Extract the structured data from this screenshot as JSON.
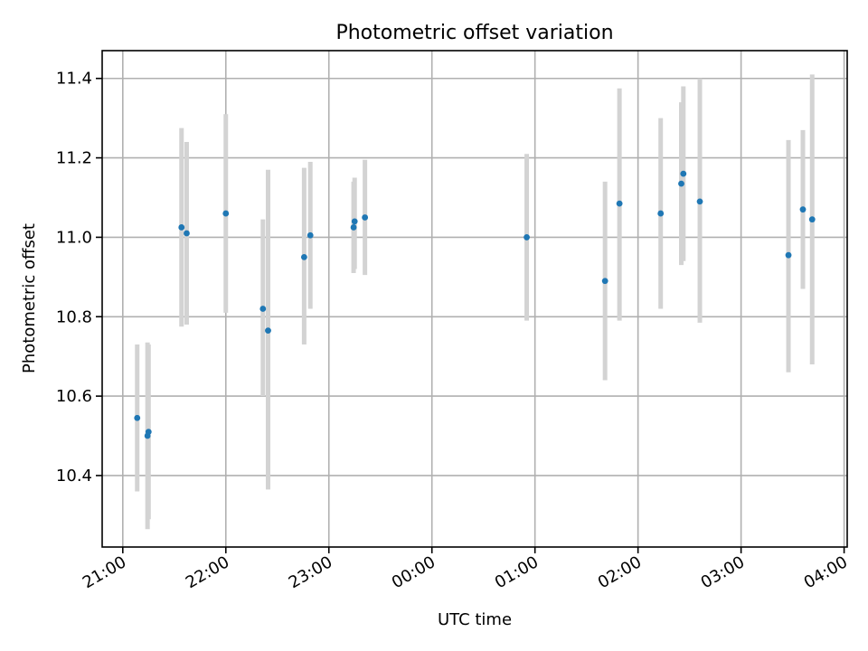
{
  "chart_data": {
    "type": "scatter",
    "title": "Photometric offset variation",
    "xlabel": "UTC time",
    "ylabel": "Photometric offset",
    "x_unit": "hours",
    "x_ticks": [
      {
        "value": 21,
        "label": "21:00"
      },
      {
        "value": 22,
        "label": "22:00"
      },
      {
        "value": 23,
        "label": "23:00"
      },
      {
        "value": 24,
        "label": "00:00"
      },
      {
        "value": 25,
        "label": "01:00"
      },
      {
        "value": 26,
        "label": "02:00"
      },
      {
        "value": 27,
        "label": "03:00"
      },
      {
        "value": 28,
        "label": "04:00"
      }
    ],
    "y_ticks": [
      {
        "value": 10.4,
        "label": "10.4"
      },
      {
        "value": 10.6,
        "label": "10.6"
      },
      {
        "value": 10.8,
        "label": "10.8"
      },
      {
        "value": 11.0,
        "label": "11.0"
      },
      {
        "value": 11.2,
        "label": "11.2"
      },
      {
        "value": 11.4,
        "label": "11.4"
      }
    ],
    "xlim": [
      20.8,
      28.03
    ],
    "ylim": [
      10.22,
      11.47
    ],
    "grid": true,
    "colors": {
      "point": "#1f77b4",
      "errorbar": "#d3d3d3"
    },
    "points": [
      {
        "x": 21.14,
        "y": 10.545,
        "ylo": 10.36,
        "yhi": 10.73
      },
      {
        "x": 21.24,
        "y": 10.5,
        "ylo": 10.265,
        "yhi": 10.735
      },
      {
        "x": 21.25,
        "y": 10.51,
        "ylo": 10.29,
        "yhi": 10.73
      },
      {
        "x": 21.57,
        "y": 11.025,
        "ylo": 10.775,
        "yhi": 11.275
      },
      {
        "x": 21.62,
        "y": 11.01,
        "ylo": 10.78,
        "yhi": 11.24
      },
      {
        "x": 22.0,
        "y": 11.06,
        "ylo": 10.81,
        "yhi": 11.31
      },
      {
        "x": 22.36,
        "y": 10.82,
        "ylo": 10.6,
        "yhi": 11.045
      },
      {
        "x": 22.41,
        "y": 10.765,
        "ylo": 10.365,
        "yhi": 11.17
      },
      {
        "x": 22.76,
        "y": 10.95,
        "ylo": 10.73,
        "yhi": 11.175
      },
      {
        "x": 22.82,
        "y": 11.005,
        "ylo": 10.82,
        "yhi": 11.19
      },
      {
        "x": 23.24,
        "y": 11.025,
        "ylo": 10.91,
        "yhi": 11.14
      },
      {
        "x": 23.25,
        "y": 11.04,
        "ylo": 10.92,
        "yhi": 11.15
      },
      {
        "x": 23.35,
        "y": 11.05,
        "ylo": 10.905,
        "yhi": 11.195
      },
      {
        "x": 24.92,
        "y": 11.0,
        "ylo": 10.79,
        "yhi": 11.21
      },
      {
        "x": 25.68,
        "y": 10.89,
        "ylo": 10.64,
        "yhi": 11.14
      },
      {
        "x": 25.82,
        "y": 11.085,
        "ylo": 10.79,
        "yhi": 11.375
      },
      {
        "x": 26.22,
        "y": 11.06,
        "ylo": 10.82,
        "yhi": 11.3
      },
      {
        "x": 26.42,
        "y": 11.135,
        "ylo": 10.93,
        "yhi": 11.34
      },
      {
        "x": 26.44,
        "y": 11.16,
        "ylo": 10.94,
        "yhi": 11.38
      },
      {
        "x": 26.6,
        "y": 11.09,
        "ylo": 10.785,
        "yhi": 11.4
      },
      {
        "x": 27.46,
        "y": 10.955,
        "ylo": 10.66,
        "yhi": 11.245
      },
      {
        "x": 27.6,
        "y": 11.07,
        "ylo": 10.87,
        "yhi": 11.27
      },
      {
        "x": 27.69,
        "y": 11.045,
        "ylo": 10.68,
        "yhi": 11.41
      }
    ]
  }
}
